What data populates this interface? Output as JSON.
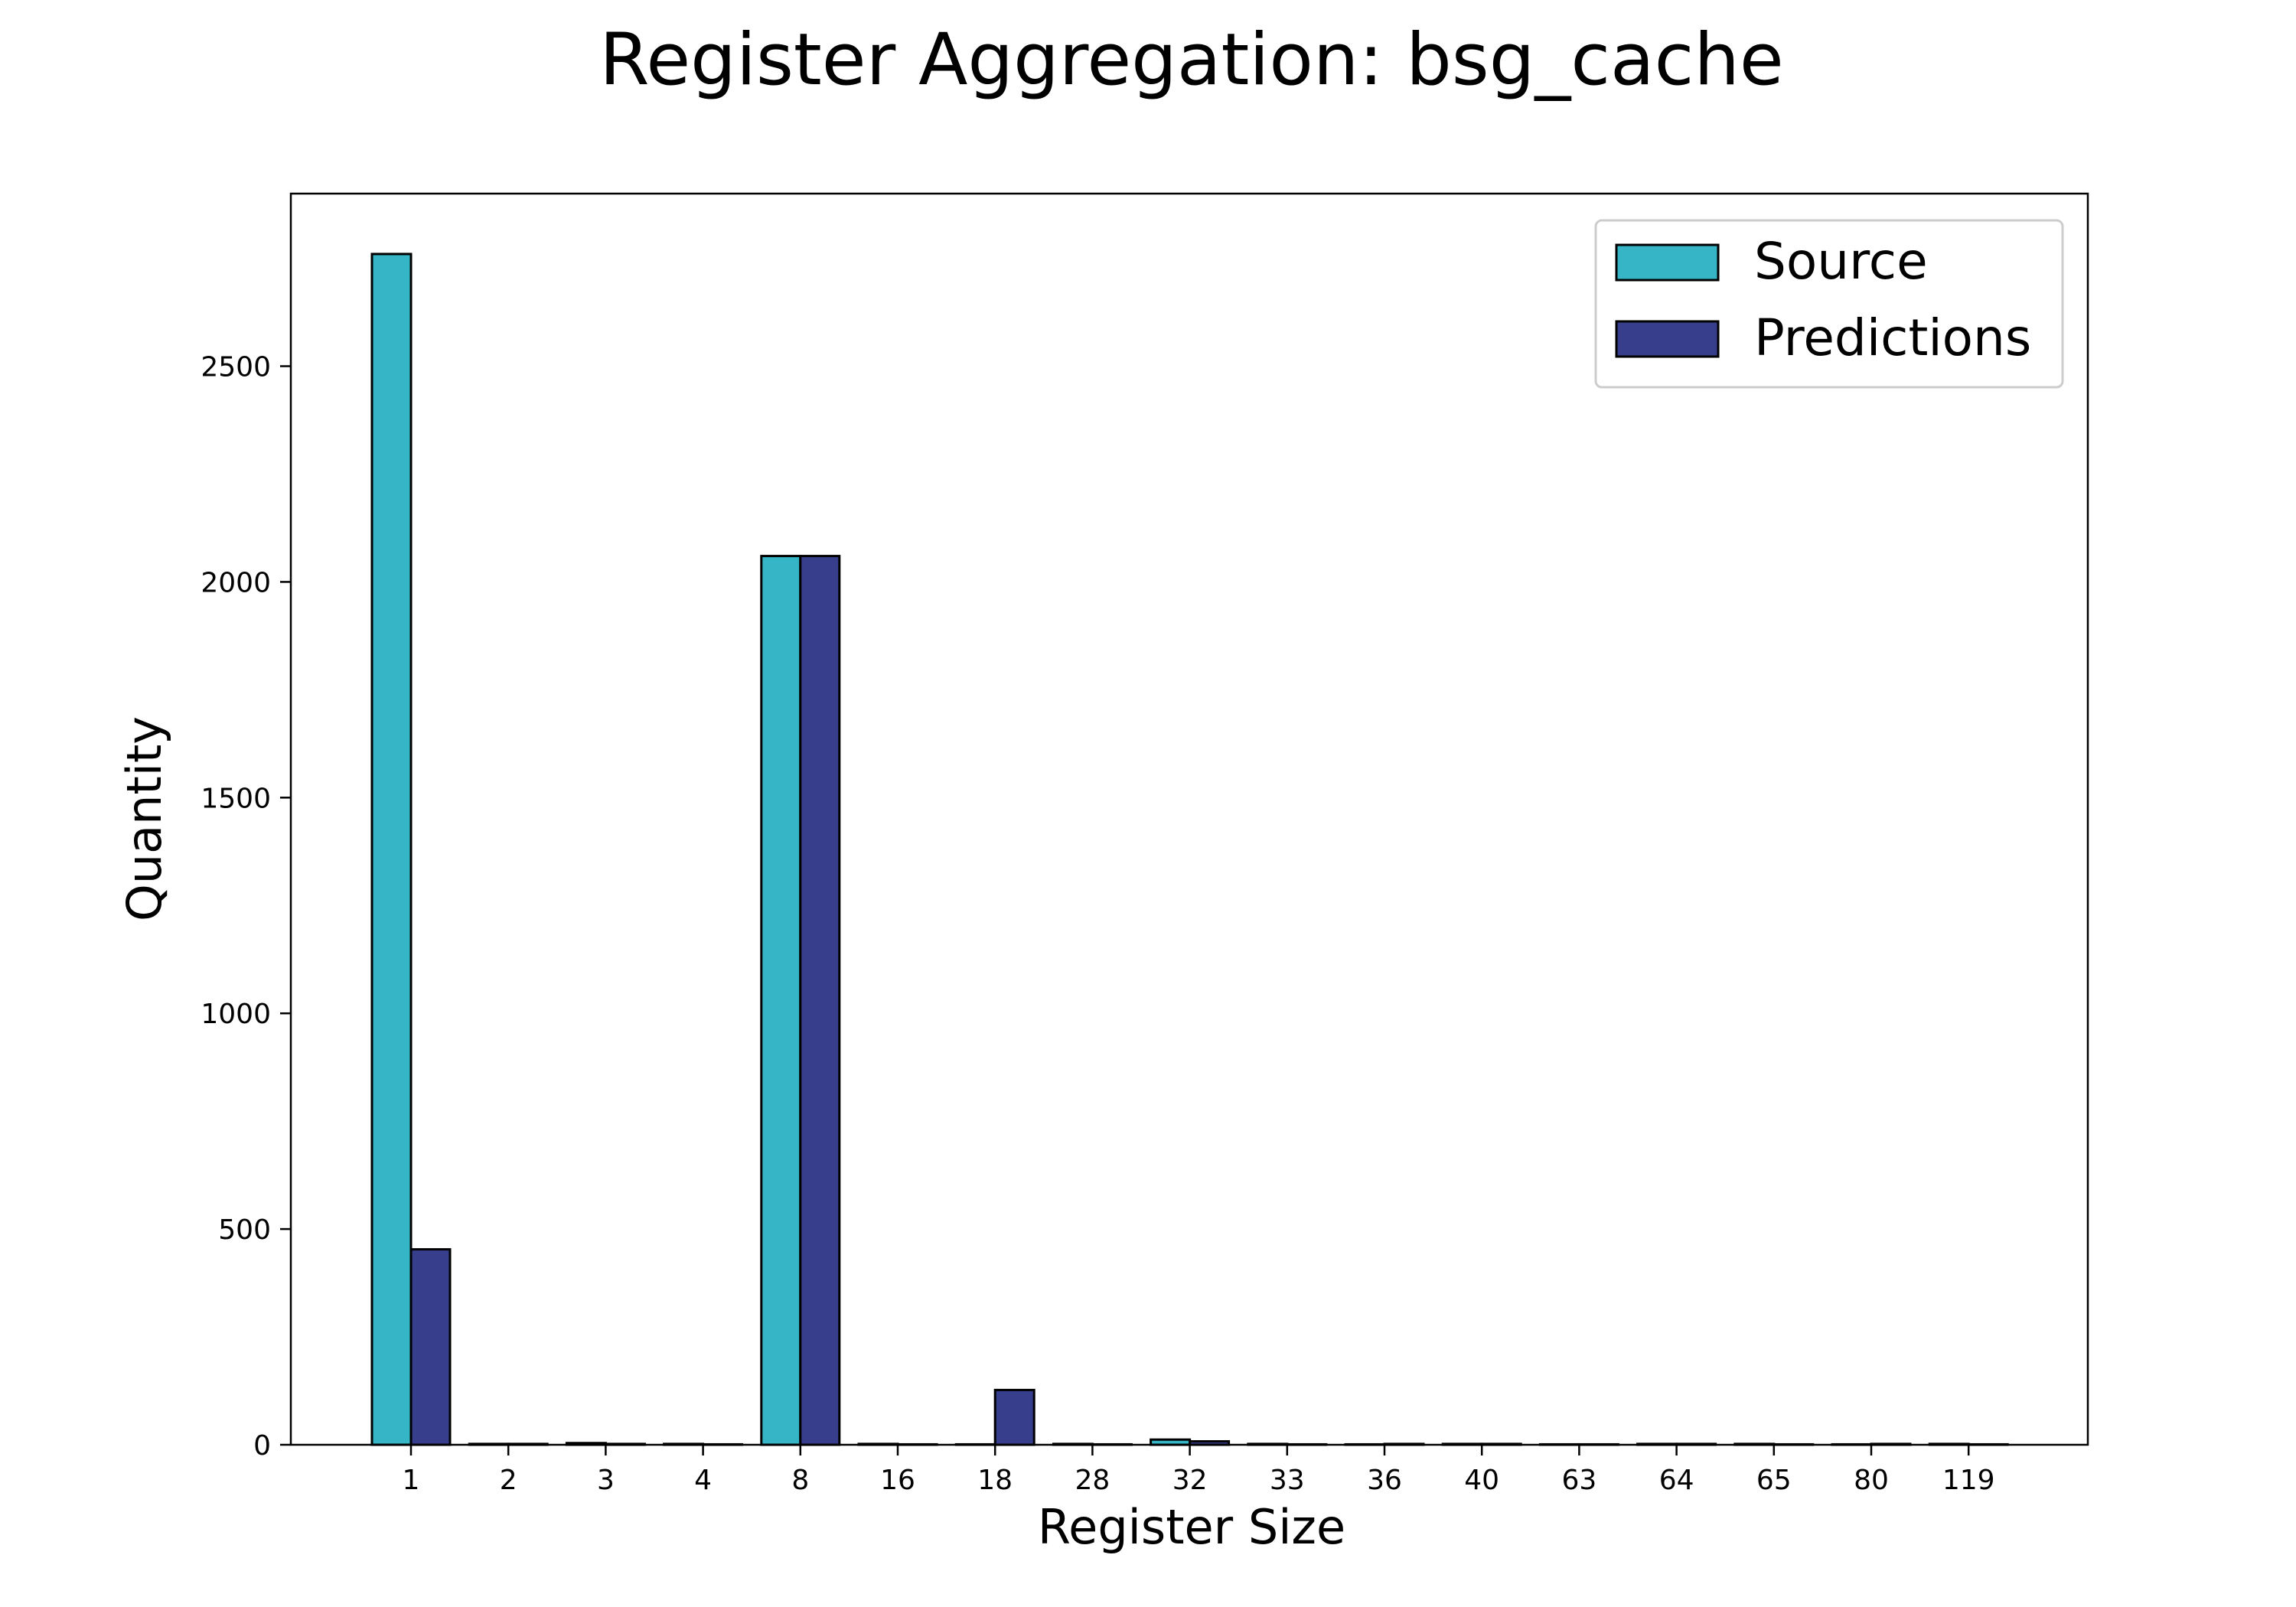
{
  "chart_data": {
    "type": "bar",
    "title": "Register Aggregation: bsg_cache",
    "xlabel": "Register Size",
    "ylabel": "Quantity",
    "categories": [
      "1",
      "2",
      "3",
      "4",
      "8",
      "16",
      "18",
      "28",
      "32",
      "33",
      "36",
      "40",
      "63",
      "64",
      "65",
      "80",
      "119"
    ],
    "series": [
      {
        "name": "Source",
        "color": "#35b5c5",
        "values": [
          2760,
          2,
          4,
          2,
          2060,
          2,
          1,
          2,
          12,
          2,
          1,
          2,
          1,
          2,
          2,
          1,
          2
        ]
      },
      {
        "name": "Predictions",
        "color": "#373f8c",
        "values": [
          453,
          2,
          2,
          1,
          2060,
          1,
          127,
          1,
          8,
          1,
          2,
          2,
          1,
          2,
          1,
          2,
          1
        ]
      }
    ],
    "ylim": [
      0,
      2900
    ],
    "yticks": [
      0,
      500,
      1000,
      1500,
      2000,
      2500
    ],
    "grid": false,
    "legend_position": "top-right"
  }
}
